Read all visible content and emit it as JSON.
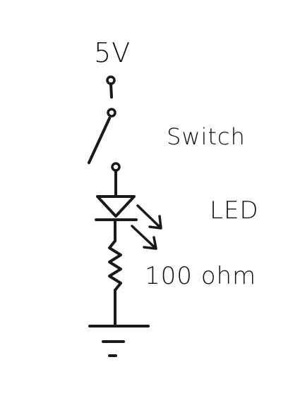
{
  "diagram": {
    "supply_label": "5V",
    "switch_label": "Switch",
    "led_label": "LED",
    "resistor_label": "100 ohm"
  },
  "colors": {
    "ink": "#1a1a1a",
    "background": "#ffffff"
  }
}
